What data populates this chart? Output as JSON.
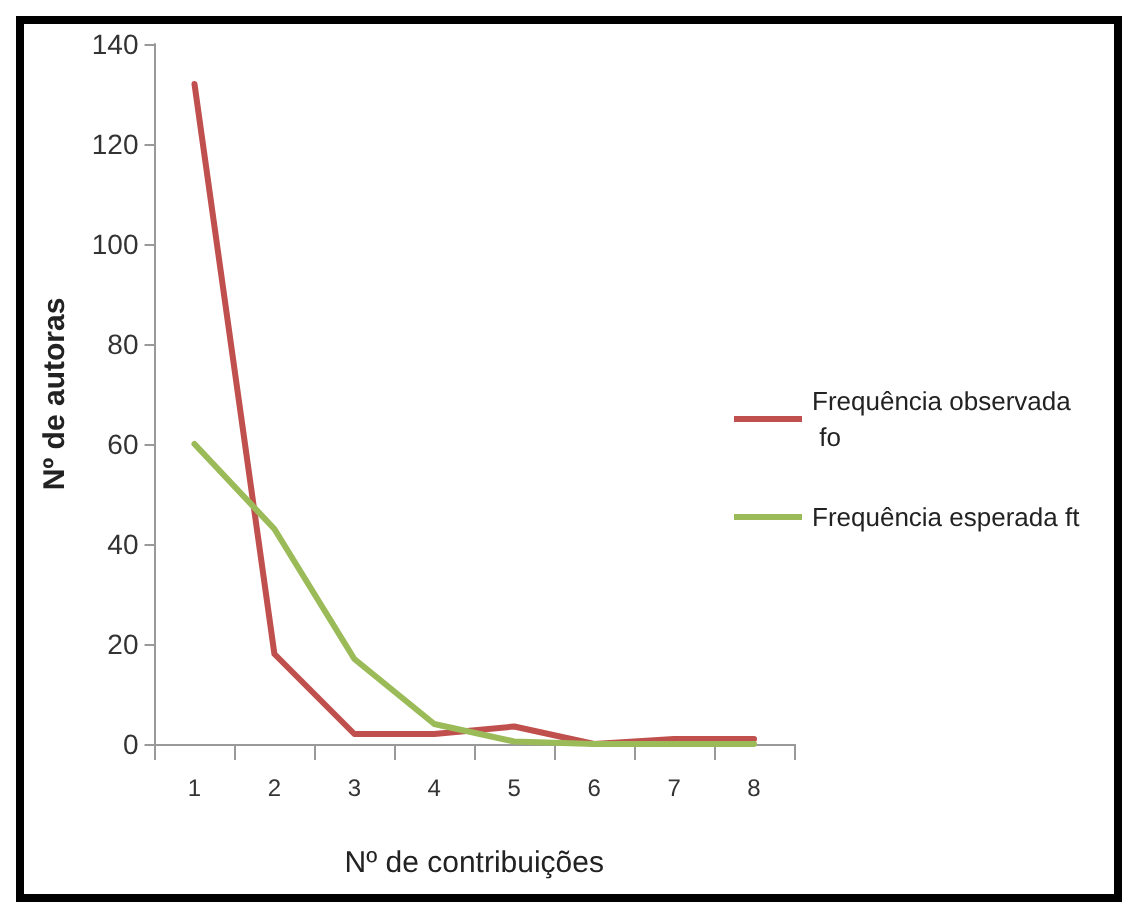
{
  "chart_data": {
    "type": "line",
    "xlabel": "Nº de contribuições",
    "ylabel": "Nº de autoras",
    "categories": [
      "1",
      "2",
      "3",
      "4",
      "5",
      "6",
      "7",
      "8"
    ],
    "series": [
      {
        "name": "Frequência observada  fo",
        "color": "#c0504d",
        "values": [
          132,
          18,
          2,
          2,
          3.5,
          0,
          1,
          1
        ]
      },
      {
        "name": "Frequência esperada ft",
        "color": "#9bbb59",
        "values": [
          60,
          43,
          17,
          4,
          0.5,
          0,
          0,
          0
        ]
      }
    ],
    "ylim": [
      0,
      140
    ],
    "yticks": [
      0,
      20,
      40,
      60,
      80,
      100,
      120,
      140
    ],
    "grid": false,
    "legend": "right",
    "marker": "none",
    "line_style": "solid"
  }
}
